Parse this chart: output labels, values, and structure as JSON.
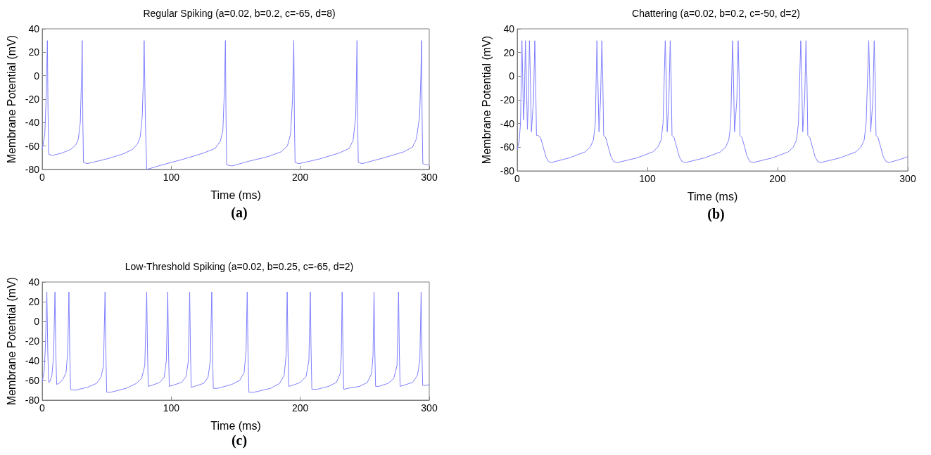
{
  "chart_data": [
    {
      "type": "line",
      "title": "Regular Spiking (a=0.02, b=0.2, c=-65, d=8)",
      "xlabel": "Time (ms)",
      "ylabel": "Membrane Potential (mV)",
      "annotations": [
        "(a)"
      ],
      "xlim": [
        0,
        300
      ],
      "ylim": [
        -80,
        40
      ],
      "xticks": [
        0,
        100,
        200,
        300
      ],
      "yticks": [
        -80,
        -60,
        -40,
        -20,
        0,
        20,
        40
      ],
      "marker": "none",
      "x": [
        0,
        2,
        3,
        4,
        4.5,
        5,
        8,
        15,
        22,
        26,
        28,
        29.5,
        30.5,
        31,
        31.5,
        32,
        35,
        50,
        62,
        70,
        74,
        76,
        77.5,
        78.5,
        79,
        80,
        81,
        90,
        110,
        125,
        134,
        138,
        140,
        141.3,
        142,
        142.5,
        143,
        147,
        160,
        175,
        185,
        190,
        192.5,
        194,
        195,
        195.5,
        196,
        199,
        215,
        230,
        238,
        241,
        243,
        244,
        244.5,
        245,
        248,
        265,
        280,
        287,
        290,
        292.5,
        293.5,
        294,
        294.5,
        295,
        297,
        300
      ],
      "series": [
        {
          "color": "#7f7fff",
          "values": [
            -63,
            -50,
            -20,
            30,
            -30,
            -67,
            -68,
            -66,
            -63,
            -59,
            -54,
            -40,
            0,
            30,
            -40,
            -74,
            -75,
            -71,
            -67,
            -63,
            -58,
            -52,
            -35,
            0,
            30,
            -40,
            -80,
            -77,
            -71,
            -66,
            -62,
            -56,
            -47,
            -10,
            30,
            -40,
            -76,
            -77,
            -73,
            -69,
            -65,
            -60,
            -50,
            -20,
            30,
            -40,
            -74,
            -75,
            -71,
            -66,
            -62,
            -55,
            -35,
            30,
            -40,
            -74,
            -75,
            -70,
            -65,
            -61,
            -54,
            -35,
            0,
            30,
            -40,
            -75,
            -76,
            -76
          ]
        }
      ]
    },
    {
      "type": "line",
      "title": "Chattering (a=0.02, b=0.2, c=-50, d=2)",
      "xlabel": "Time (ms)",
      "ylabel": "Membrane Potential (mV)",
      "annotations": [
        "(b)"
      ],
      "xlim": [
        0,
        300
      ],
      "ylim": [
        -80,
        40
      ],
      "xticks": [
        0,
        100,
        200,
        300
      ],
      "yticks": [
        -80,
        -60,
        -40,
        -20,
        0,
        20,
        40
      ],
      "marker": "none",
      "x": [
        0,
        1.5,
        2.5,
        3.6,
        4.2,
        4.8,
        5.5,
        6.3,
        7,
        7.8,
        8.6,
        9.4,
        10.1,
        10.9,
        12.5,
        13.5,
        14.1,
        14.8,
        16,
        18,
        20,
        22,
        24,
        26,
        40,
        52,
        56,
        58.5,
        60,
        61.2,
        61.9,
        62.8,
        64,
        65,
        65.7,
        66.4,
        68,
        70,
        72,
        74,
        77,
        92,
        104,
        108,
        110.5,
        112,
        113.7,
        114.4,
        115.2,
        116.5,
        117.5,
        118.2,
        118.9,
        120.5,
        122.5,
        124.5,
        126.5,
        129,
        144,
        156,
        160,
        162.5,
        164,
        165.4,
        166.1,
        166.9,
        168.7,
        169.7,
        170.4,
        171.1,
        172.7,
        174.7,
        176.7,
        178.7,
        181,
        196,
        208,
        212,
        214.5,
        216,
        217.8,
        218.5,
        219.3,
        220.8,
        221.8,
        222.5,
        223.2,
        224.8,
        226.8,
        228.8,
        230.8,
        233,
        248,
        260,
        264,
        266.5,
        268,
        270,
        270.7,
        271.5,
        273.2,
        274.2,
        274.9,
        275.6,
        277.2,
        279.2,
        281.2,
        283.2,
        285.5,
        295,
        300
      ],
      "series": [
        {
          "color": "#7f7fff",
          "values": [
            -62,
            -55,
            -40,
            30,
            0,
            -37,
            -20,
            30,
            0,
            -45,
            -20,
            30,
            0,
            -47,
            -20,
            30,
            0,
            -50,
            -50,
            -52,
            -60,
            -68,
            -72,
            -73,
            -69,
            -64,
            -60,
            -54,
            -40,
            30,
            0,
            -47,
            -20,
            30,
            0,
            -50,
            -52,
            -60,
            -68,
            -72,
            -73,
            -69,
            -64,
            -60,
            -54,
            -40,
            30,
            0,
            -47,
            -20,
            30,
            0,
            -50,
            -52,
            -60,
            -68,
            -72,
            -73,
            -69,
            -64,
            -60,
            -54,
            -40,
            30,
            0,
            -47,
            -20,
            30,
            0,
            -50,
            -52,
            -60,
            -68,
            -72,
            -73,
            -69,
            -64,
            -60,
            -54,
            -40,
            30,
            0,
            -47,
            -20,
            30,
            0,
            -50,
            -52,
            -60,
            -68,
            -72,
            -73,
            -69,
            -64,
            -60,
            -54,
            -40,
            30,
            0,
            -47,
            -20,
            30,
            0,
            -50,
            -52,
            -60,
            -68,
            -72,
            -73,
            -70,
            -68
          ]
        }
      ]
    },
    {
      "type": "line",
      "title": "Low-Threshold Spiking (a=0.02, b=0.25, c=-65, d=2)",
      "xlabel": "Time (ms)",
      "ylabel": "Membrane Potential (mV)",
      "annotations": [
        "(c)"
      ],
      "xlim": [
        0,
        300
      ],
      "ylim": [
        -80,
        40
      ],
      "xticks": [
        0,
        100,
        200,
        300
      ],
      "yticks": [
        -80,
        -60,
        -40,
        -20,
        0,
        20,
        40
      ],
      "marker": "none",
      "x": [
        0,
        1.5,
        2.5,
        3.6,
        4.3,
        5,
        6,
        7.5,
        8.8,
        9.9,
        10.5,
        11.2,
        13,
        16,
        18.5,
        19.8,
        20.7,
        21.3,
        22,
        25,
        35,
        42,
        45.5,
        47.5,
        48.7,
        49.3,
        50,
        53,
        65,
        73,
        77,
        79.5,
        81,
        81.6,
        82.2,
        85,
        91,
        94.5,
        96.2,
        97.3,
        97.9,
        98.5,
        101,
        108,
        111.5,
        113.3,
        114.3,
        114.9,
        115.5,
        118,
        125,
        128.5,
        130.3,
        131.4,
        132,
        132.6,
        136,
        147,
        153,
        156.5,
        158,
        158.9,
        159.5,
        160.2,
        164,
        177,
        184,
        187.5,
        189,
        189.9,
        190.5,
        191.1,
        194,
        200,
        204.5,
        206.7,
        207.8,
        208.4,
        209,
        213,
        222,
        228,
        231,
        231.8,
        232.5,
        233.1,
        233.7,
        237,
        246,
        252,
        255.3,
        256.4,
        257.2,
        257.8,
        258.4,
        261,
        268,
        272.5,
        275,
        276.2,
        276.8,
        277.4,
        280,
        287,
        290.8,
        292.7,
        293.7,
        294.3,
        294.9,
        298,
        300
      ],
      "series": [
        {
          "color": "#7f7fff",
          "values": [
            -62,
            -50,
            -25,
            30,
            -30,
            -62,
            -61,
            -55,
            -35,
            30,
            -30,
            -64,
            -63,
            -59,
            -52,
            -30,
            30,
            -30,
            -69,
            -70,
            -67,
            -63,
            -57,
            -45,
            30,
            -30,
            -72,
            -72,
            -68,
            -63,
            -58,
            -45,
            30,
            -30,
            -66,
            -65,
            -62,
            -57,
            -40,
            30,
            -30,
            -66,
            -65,
            -62,
            -56,
            -40,
            30,
            -30,
            -67,
            -66,
            -63,
            -57,
            -40,
            30,
            -30,
            -68,
            -68,
            -64,
            -60,
            -52,
            -30,
            30,
            -30,
            -72,
            -72,
            -68,
            -63,
            -55,
            -35,
            30,
            -30,
            -66,
            -65,
            -62,
            -56,
            -40,
            30,
            -30,
            -69,
            -69,
            -66,
            -62,
            -53,
            -35,
            30,
            -30,
            -69,
            -68,
            -66,
            -62,
            -53,
            -35,
            30,
            -30,
            -66,
            -66,
            -63,
            -58,
            -45,
            30,
            -30,
            -66,
            -65,
            -62,
            -55,
            -40,
            30,
            -30,
            -65,
            -65,
            -64
          ]
        }
      ]
    }
  ]
}
